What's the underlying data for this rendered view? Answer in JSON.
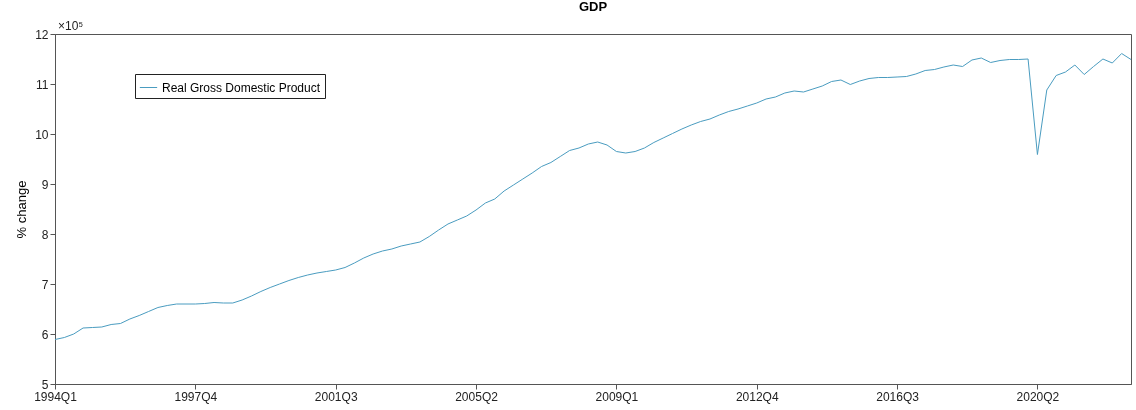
{
  "chart_data": {
    "type": "line",
    "title": "GDP",
    "ylabel": "% change",
    "categories": [
      "1994Q1",
      null,
      null,
      null,
      null,
      null,
      null,
      null,
      null,
      null,
      null,
      null,
      null,
      null,
      null,
      "1997Q4",
      null,
      null,
      null,
      null,
      null,
      null,
      null,
      null,
      null,
      null,
      null,
      null,
      null,
      null,
      "2001Q3",
      null,
      null,
      null,
      null,
      null,
      null,
      null,
      null,
      null,
      null,
      null,
      null,
      null,
      null,
      "2005Q2",
      null,
      null,
      null,
      null,
      null,
      null,
      null,
      null,
      null,
      null,
      null,
      null,
      null,
      null,
      "2009Q1",
      null,
      null,
      null,
      null,
      null,
      null,
      null,
      null,
      null,
      null,
      null,
      null,
      null,
      null,
      "2012Q4",
      null,
      null,
      null,
      null,
      null,
      null,
      null,
      null,
      null,
      null,
      null,
      null,
      null,
      null,
      "2016Q3",
      null,
      null,
      null,
      null,
      null,
      null,
      null,
      null,
      null,
      null,
      null,
      null,
      null,
      null,
      "2020Q2",
      null,
      null,
      null,
      null,
      null,
      null,
      null,
      null,
      null,
      null
    ],
    "series": [
      {
        "name": "Real Gross Domestic Product",
        "color": "#4a9cc0",
        "values": [
          5.89,
          5.93,
          6.0,
          6.12,
          6.13,
          6.14,
          6.19,
          6.21,
          6.3,
          6.37,
          6.45,
          6.53,
          6.57,
          6.6,
          6.6,
          6.6,
          6.61,
          6.63,
          6.62,
          6.62,
          6.68,
          6.76,
          6.85,
          6.93,
          7.0,
          7.07,
          7.13,
          7.18,
          7.22,
          7.25,
          7.28,
          7.33,
          7.42,
          7.52,
          7.6,
          7.66,
          7.7,
          7.76,
          7.8,
          7.84,
          7.95,
          8.08,
          8.2,
          8.28,
          8.36,
          8.48,
          8.62,
          8.7,
          8.86,
          8.98,
          9.1,
          9.22,
          9.35,
          9.43,
          9.55,
          9.67,
          9.72,
          9.8,
          9.84,
          9.78,
          9.65,
          9.62,
          9.65,
          9.72,
          9.83,
          9.92,
          10.01,
          10.1,
          10.18,
          10.25,
          10.3,
          10.38,
          10.45,
          10.5,
          10.56,
          10.62,
          10.7,
          10.74,
          10.82,
          10.86,
          10.84,
          10.9,
          10.96,
          11.05,
          11.08,
          10.99,
          11.06,
          11.11,
          11.13,
          11.13,
          11.14,
          11.15,
          11.2,
          11.27,
          11.29,
          11.34,
          11.38,
          11.35,
          11.48,
          11.52,
          11.43,
          11.47,
          11.49,
          11.49,
          11.5,
          9.59,
          10.88,
          11.17,
          11.24,
          11.38,
          11.19,
          11.35,
          11.5,
          11.42,
          11.61,
          11.49
        ]
      }
    ],
    "ylim": [
      5,
      12
    ],
    "yticks": [
      5,
      6,
      7,
      8,
      9,
      10,
      11,
      12
    ],
    "annotations": [
      "×10⁵"
    ],
    "legend": "top left"
  }
}
